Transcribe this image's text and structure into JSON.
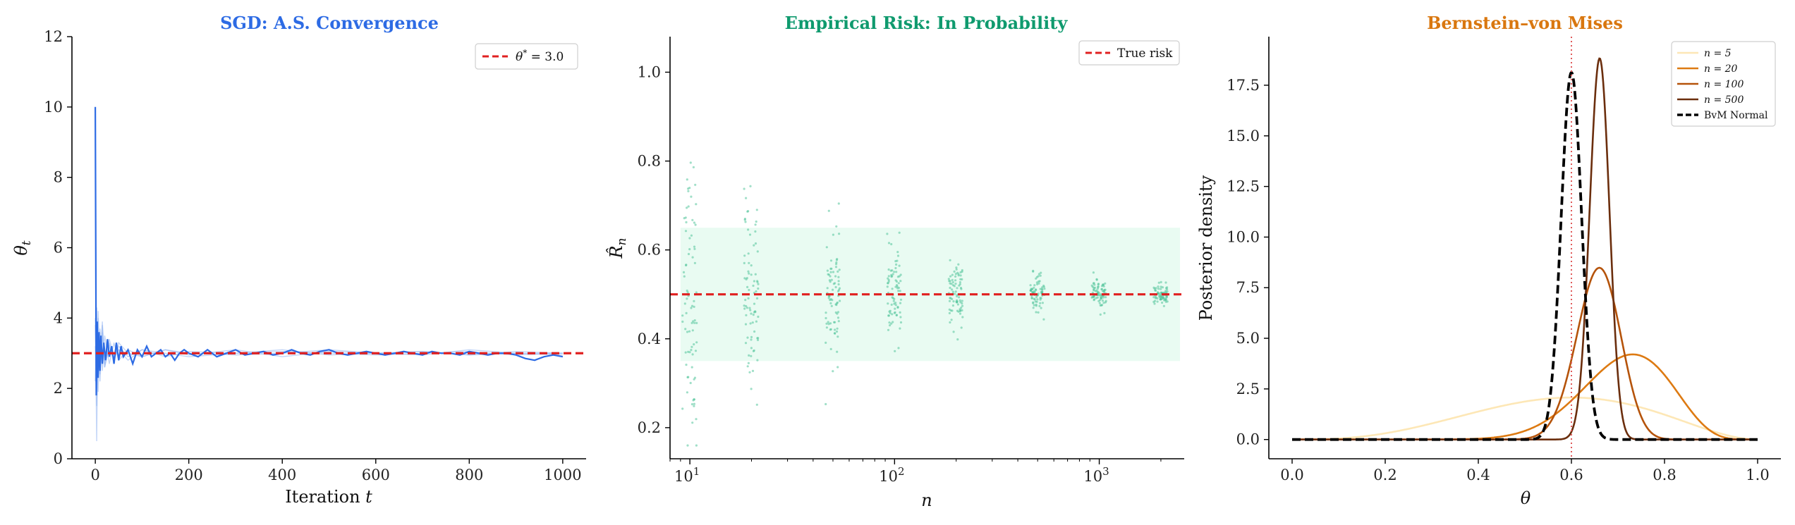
{
  "chart_data": [
    {
      "id": "sgd",
      "type": "line",
      "title": "SGD: A.S. Convergence",
      "title_color": "#2d6be4",
      "xlabel": "Iteration t",
      "ylabel": "θ_t",
      "xlim": [
        -50,
        1050
      ],
      "ylim": [
        0,
        12
      ],
      "xticks": [
        0,
        200,
        400,
        600,
        800,
        1000
      ],
      "yticks": [
        0,
        2,
        4,
        6,
        8,
        10,
        12
      ],
      "grid": false,
      "legend_position": "top-right",
      "reference": {
        "name": "θ* = 3.0",
        "value": 3.0,
        "color": "#e02020"
      },
      "main_series_color": "#2d6be4",
      "faint_series_color": "#8fb3f0",
      "main_series": {
        "x": [
          0,
          2,
          4,
          6,
          8,
          10,
          12,
          15,
          18,
          22,
          26,
          30,
          35,
          40,
          45,
          50,
          55,
          60,
          70,
          80,
          90,
          100,
          110,
          120,
          130,
          140,
          150,
          160,
          170,
          180,
          190,
          200,
          220,
          240,
          260,
          280,
          300,
          320,
          340,
          360,
          380,
          400,
          420,
          440,
          460,
          480,
          500,
          520,
          540,
          560,
          580,
          600,
          620,
          640,
          660,
          680,
          700,
          720,
          740,
          760,
          780,
          800,
          820,
          840,
          860,
          880,
          900,
          920,
          940,
          960,
          980,
          1000
        ],
        "values": [
          10.0,
          1.8,
          3.9,
          2.3,
          3.6,
          2.5,
          3.5,
          2.7,
          3.3,
          2.8,
          3.4,
          2.9,
          3.2,
          2.7,
          3.3,
          2.8,
          3.2,
          2.9,
          3.1,
          2.7,
          3.1,
          2.9,
          3.2,
          2.9,
          3.0,
          3.1,
          2.9,
          3.0,
          2.8,
          3.0,
          3.1,
          3.0,
          2.9,
          3.1,
          2.9,
          3.0,
          3.1,
          2.95,
          3.0,
          3.05,
          2.95,
          3.0,
          3.1,
          3.0,
          2.95,
          3.05,
          3.1,
          3.0,
          2.95,
          3.0,
          3.05,
          3.0,
          2.95,
          3.0,
          3.05,
          3.0,
          2.95,
          3.05,
          3.0,
          3.0,
          2.95,
          3.05,
          3.0,
          2.95,
          3.0,
          3.0,
          2.95,
          2.85,
          2.8,
          2.9,
          2.95,
          2.9
        ]
      },
      "faint_series": [
        {
          "x": [
            0,
            3,
            6,
            10,
            15,
            20,
            30,
            40,
            50,
            70,
            100,
            150,
            200,
            300,
            400,
            500,
            600,
            700,
            800,
            900,
            1000
          ],
          "values": [
            3.8,
            0.5,
            4.2,
            2.4,
            3.9,
            2.6,
            3.3,
            2.8,
            3.2,
            2.9,
            3.1,
            2.9,
            3.05,
            3.0,
            3.1,
            2.95,
            3.0,
            3.05,
            2.95,
            3.0,
            3.0
          ]
        },
        {
          "x": [
            0,
            3,
            6,
            10,
            15,
            20,
            30,
            40,
            50,
            70,
            100,
            150,
            200,
            300,
            400,
            500,
            600,
            700,
            800,
            900,
            1000
          ],
          "values": [
            2.2,
            4.3,
            1.9,
            3.7,
            2.5,
            3.5,
            2.7,
            3.3,
            2.8,
            3.1,
            2.9,
            3.1,
            2.95,
            3.1,
            2.9,
            3.05,
            3.0,
            2.95,
            3.1,
            3.0,
            2.95
          ]
        },
        {
          "x": [
            0,
            3,
            6,
            10,
            15,
            20,
            30,
            40,
            50,
            70,
            100,
            150,
            200,
            300,
            400,
            500,
            600,
            700,
            800,
            900,
            1000
          ],
          "values": [
            3.2,
            2.0,
            4.0,
            2.2,
            3.6,
            2.7,
            3.4,
            2.9,
            3.1,
            2.8,
            3.1,
            3.0,
            2.9,
            3.0,
            3.05,
            3.0,
            2.95,
            3.0,
            3.05,
            2.95,
            3.0
          ]
        },
        {
          "x": [
            0,
            3,
            6,
            10,
            15,
            20,
            30,
            40,
            50,
            70,
            100,
            150,
            200,
            300,
            400,
            500,
            600,
            700,
            800,
            900,
            1000
          ],
          "values": [
            4.0,
            1.5,
            3.5,
            2.9,
            3.8,
            2.6,
            3.2,
            2.8,
            3.3,
            3.0,
            2.9,
            3.1,
            3.0,
            2.95,
            3.0,
            3.1,
            3.0,
            3.05,
            2.95,
            3.05,
            3.0
          ]
        }
      ]
    },
    {
      "id": "empirical",
      "type": "scatter",
      "title": "Empirical Risk: In Probability",
      "title_color": "#0f9a6e",
      "xlabel": "n",
      "ylabel": "R̂_n",
      "xscale": "log",
      "xlim": [
        8,
        2600
      ],
      "ylim": [
        0.13,
        1.08
      ],
      "xticks": [
        10,
        100,
        1000
      ],
      "xtick_labels": [
        "10",
        "2",
        "3"
      ],
      "yticks": [
        0.2,
        0.4,
        0.6,
        0.8,
        1.0
      ],
      "ytick_labels": [
        "0.2",
        "0.4",
        "0.6",
        "0.8",
        "1.0"
      ],
      "grid": false,
      "legend_position": "top-right",
      "reference": {
        "name": "True risk",
        "value": 0.5,
        "color": "#e02020"
      },
      "band": {
        "lower": 0.35,
        "upper": 0.65,
        "color": "#e9fbf2"
      },
      "point_color": "#52c49a",
      "groups": [
        {
          "n": 10,
          "mean": 0.5,
          "sd": 0.158,
          "count": 80
        },
        {
          "n": 20,
          "mean": 0.5,
          "sd": 0.112,
          "count": 80
        },
        {
          "n": 50,
          "mean": 0.5,
          "sd": 0.071,
          "count": 80
        },
        {
          "n": 100,
          "mean": 0.5,
          "sd": 0.05,
          "count": 80
        },
        {
          "n": 200,
          "mean": 0.5,
          "sd": 0.035,
          "count": 80
        },
        {
          "n": 500,
          "mean": 0.5,
          "sd": 0.022,
          "count": 80
        },
        {
          "n": 1000,
          "mean": 0.5,
          "sd": 0.016,
          "count": 80
        },
        {
          "n": 2000,
          "mean": 0.5,
          "sd": 0.011,
          "count": 80
        }
      ]
    },
    {
      "id": "bvm",
      "type": "line",
      "title": "Bernstein–von Mises",
      "title_color": "#d9770f",
      "xlabel": "θ",
      "ylabel": "Posterior density",
      "xlim": [
        -0.05,
        1.05
      ],
      "ylim": [
        -0.95,
        19.9
      ],
      "xticks": [
        0.0,
        0.2,
        0.4,
        0.6,
        0.8,
        1.0
      ],
      "xtick_labels": [
        "0.0",
        "0.2",
        "0.4",
        "0.6",
        "0.8",
        "1.0"
      ],
      "yticks": [
        0.0,
        2.5,
        5.0,
        7.5,
        10.0,
        12.5,
        15.0,
        17.5
      ],
      "ytick_labels": [
        "0.0",
        "2.5",
        "5.0",
        "7.5",
        "10.0",
        "12.5",
        "15.0",
        "17.5"
      ],
      "grid": false,
      "legend_position": "top-right",
      "true_value": {
        "value": 0.6,
        "color": "#e05a5a"
      },
      "series": [
        {
          "name": "n = 5",
          "kind": "beta",
          "a": 4,
          "b": 3,
          "color": "#fde7b6"
        },
        {
          "name": "n = 20",
          "kind": "beta",
          "a": 16,
          "b": 6.5,
          "color": "#dd7a12"
        },
        {
          "name": "n = 100",
          "kind": "beta",
          "a": 67,
          "b": 35,
          "color": "#b5530a"
        },
        {
          "name": "n = 500",
          "kind": "beta",
          "a": 330,
          "b": 170,
          "color": "#6b2e0d"
        },
        {
          "name": "BvM Normal",
          "kind": "normal",
          "mu": 0.6,
          "sigma": 0.022,
          "color": "#000000",
          "dashed": true
        }
      ]
    }
  ]
}
